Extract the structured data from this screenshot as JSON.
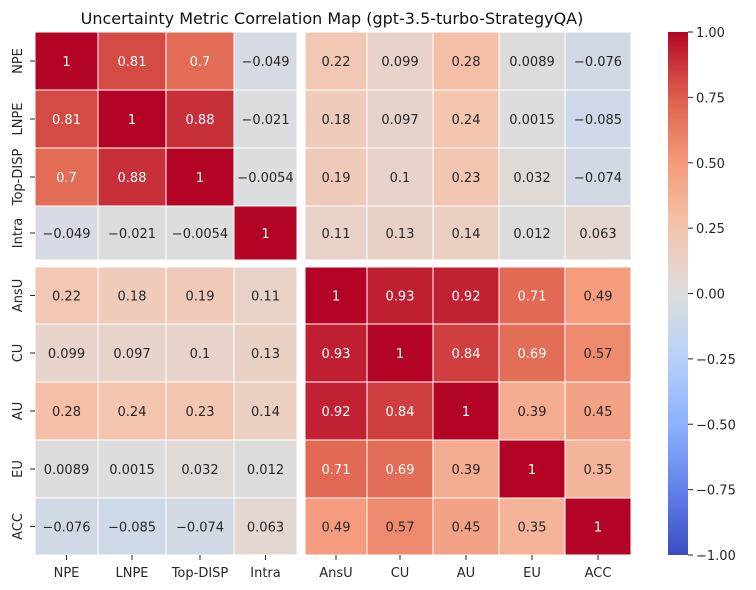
{
  "chart_data": {
    "type": "heatmap",
    "title": "Uncertainty Metric Correlation Map (gpt-3.5-turbo-StrategyQA)",
    "xlabel": "",
    "ylabel": "",
    "labels": [
      "NPE",
      "LNPE",
      "Top-DISP",
      "Intra",
      "AnsU",
      "CU",
      "AU",
      "EU",
      "ACC"
    ],
    "matrix": [
      [
        1,
        0.81,
        0.7,
        -0.049,
        0.22,
        0.099,
        0.28,
        0.0089,
        -0.076
      ],
      [
        0.81,
        1,
        0.88,
        -0.021,
        0.18,
        0.097,
        0.24,
        0.0015,
        -0.085
      ],
      [
        0.7,
        0.88,
        1,
        -0.0054,
        0.19,
        0.1,
        0.23,
        0.032,
        -0.074
      ],
      [
        -0.049,
        -0.021,
        -0.0054,
        1,
        0.11,
        0.13,
        0.14,
        0.012,
        0.063
      ],
      [
        0.22,
        0.18,
        0.19,
        0.11,
        1,
        0.93,
        0.92,
        0.71,
        0.49
      ],
      [
        0.099,
        0.097,
        0.1,
        0.13,
        0.93,
        1,
        0.84,
        0.69,
        0.57
      ],
      [
        0.28,
        0.24,
        0.23,
        0.14,
        0.92,
        0.84,
        1,
        0.39,
        0.45
      ],
      [
        0.0089,
        0.0015,
        0.032,
        0.012,
        0.71,
        0.69,
        0.39,
        1,
        0.35
      ],
      [
        -0.076,
        -0.085,
        -0.074,
        0.063,
        0.49,
        0.57,
        0.45,
        0.35,
        1
      ]
    ],
    "group_split_after": 4,
    "colormap": "coolwarm",
    "vmin": -1,
    "vmax": 1,
    "colorbar_ticks": [
      "1.00",
      "0.75",
      "0.50",
      "0.25",
      "0.00",
      "−0.25",
      "−0.50",
      "−0.75",
      "−1.00"
    ],
    "colorbar_tick_values": [
      1,
      0.75,
      0.5,
      0.25,
      0,
      -0.25,
      -0.5,
      -0.75,
      -1
    ],
    "grid": false
  }
}
